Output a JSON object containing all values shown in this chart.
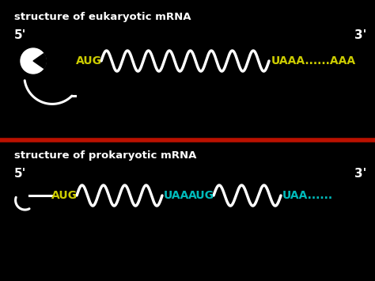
{
  "bg_color": "#000000",
  "red_line_color": "#bb1100",
  "white_color": "#ffffff",
  "yellow_color": "#cccc00",
  "cyan_color": "#00bbbb",
  "euk_title": "structure of eukaryotic mRNA",
  "prok_title": "structure of prokaryotic mRNA",
  "title_fontsize": 9.5,
  "prime_fontsize": 11,
  "code_fontsize": 10,
  "euk_aug": "AUG",
  "euk_stop": "UAAA......AAA",
  "prok_aug1": "AUG",
  "prok_stop1": "UAA",
  "prok_aug2": "AUG",
  "prok_stop2": "UAA......",
  "fig_width": 4.74,
  "fig_height": 3.55,
  "dpi": 100
}
